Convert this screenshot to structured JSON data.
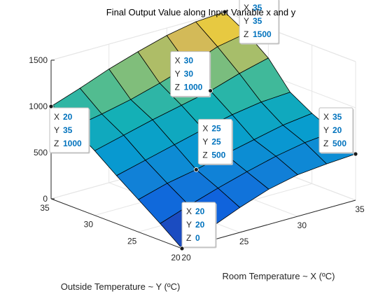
{
  "chart_data": {
    "type": "surface3d",
    "title": "Final Output Value along Input Variable x and y",
    "xlabel": "Room Temperature ~ X (ºC)",
    "ylabel": "Outside Temperature ~ Y (ºC)",
    "zlabel": "",
    "xlim": [
      20,
      35
    ],
    "ylim": [
      20,
      35
    ],
    "zlim": [
      0,
      1500
    ],
    "x_ticks": [
      20,
      25,
      30,
      35
    ],
    "y_ticks": [
      20,
      25,
      30,
      35
    ],
    "z_ticks": [
      0,
      500,
      1000,
      1500
    ],
    "grid": true,
    "colormap": "parula",
    "x": [
      20,
      22.5,
      25,
      27.5,
      30,
      32.5,
      35
    ],
    "y": [
      20,
      22.5,
      25,
      27.5,
      30,
      32.5,
      35
    ],
    "z": [
      [
        0,
        140,
        270,
        380,
        450,
        480,
        500
      ],
      [
        180,
        290,
        390,
        480,
        560,
        620,
        650
      ],
      [
        350,
        440,
        500,
        580,
        650,
        720,
        760
      ],
      [
        520,
        600,
        680,
        760,
        830,
        880,
        900
      ],
      [
        700,
        780,
        860,
        930,
        1000,
        1100,
        1180
      ],
      [
        860,
        920,
        990,
        1080,
        1180,
        1300,
        1360
      ],
      [
        1000,
        1110,
        1230,
        1330,
        1420,
        1480,
        1500
      ]
    ],
    "datatips": [
      {
        "x": 20,
        "y": 35,
        "z": 1000
      },
      {
        "x": 30,
        "y": 30,
        "z": 1000
      },
      {
        "x": 35,
        "y": 35,
        "z": 1500
      },
      {
        "x": 25,
        "y": 25,
        "z": 500
      },
      {
        "x": 35,
        "y": 20,
        "z": 500
      },
      {
        "x": 20,
        "y": 20,
        "z": 0
      }
    ],
    "tip_labels": {
      "x": "X",
      "y": "Y",
      "z": "Z"
    }
  }
}
